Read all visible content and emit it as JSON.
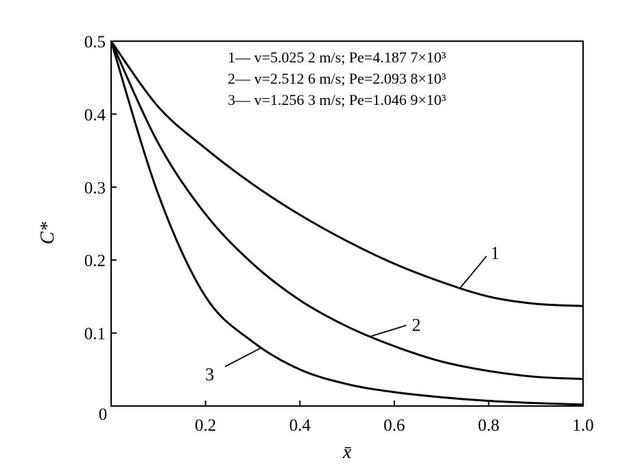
{
  "chart_data": {
    "type": "line",
    "xlabel": "x̄",
    "ylabel": "C*",
    "xlim": [
      0,
      1.0
    ],
    "ylim": [
      0,
      0.5
    ],
    "x_ticks": [
      "0.2",
      "0.4",
      "0.6",
      "0.8",
      "1.0"
    ],
    "y_ticks": [
      "0.1",
      "0.2",
      "0.3",
      "0.4",
      "0.5"
    ],
    "origin_label": "0",
    "grid": false,
    "legend_position": "top-right",
    "x": [
      0,
      0.1,
      0.2,
      0.3,
      0.4,
      0.5,
      0.6,
      0.7,
      0.8,
      0.9,
      1.0
    ],
    "series": [
      {
        "name": "1",
        "legend_label": "1— v=5.025 2 m/s; Pe=4.187 7×10³",
        "values": [
          0.5,
          0.41,
          0.353,
          0.304,
          0.262,
          0.226,
          0.195,
          0.17,
          0.15,
          0.14,
          0.137
        ]
      },
      {
        "name": "2",
        "legend_label": "2— v=2.512 6 m/s; Pe=2.093 8×10³",
        "values": [
          0.5,
          0.36,
          0.263,
          0.195,
          0.145,
          0.109,
          0.082,
          0.061,
          0.048,
          0.04,
          0.037
        ]
      },
      {
        "name": "3",
        "legend_label": "3— v=1.256 3 m/s; Pe=1.046 9×10³",
        "values": [
          0.5,
          0.29,
          0.15,
          0.088,
          0.05,
          0.03,
          0.019,
          0.012,
          0.007,
          0.004,
          0.002
        ]
      }
    ],
    "curve_labels": [
      "1",
      "2",
      "3"
    ]
  }
}
